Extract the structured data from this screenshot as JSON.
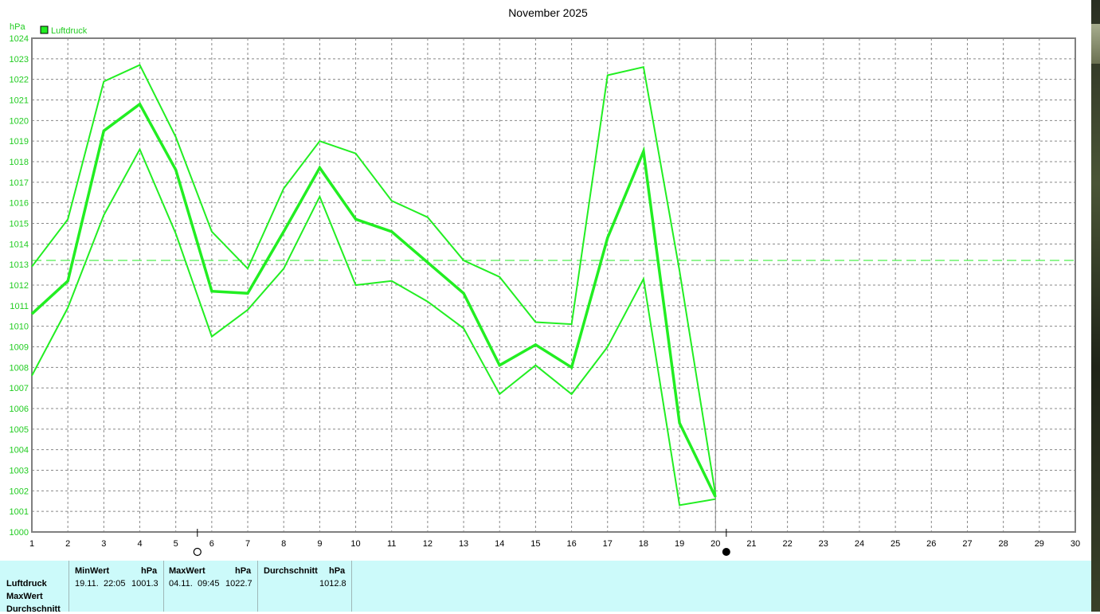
{
  "window": {
    "title": "November 2025"
  },
  "chart_data": {
    "type": "line",
    "title": "November 2025",
    "ylabel": "hPa",
    "xlabel": "",
    "ylim": [
      1000,
      1024
    ],
    "xlim": [
      1,
      30
    ],
    "grid": true,
    "legend": "top-left",
    "legend_entries": [
      "Luftdruck"
    ],
    "x_ticks": [
      1,
      2,
      3,
      4,
      5,
      6,
      7,
      8,
      9,
      10,
      11,
      12,
      13,
      14,
      15,
      16,
      17,
      18,
      19,
      20,
      21,
      22,
      23,
      24,
      25,
      26,
      27,
      28,
      29,
      30
    ],
    "y_ticks": [
      1000,
      1001,
      1002,
      1003,
      1004,
      1005,
      1006,
      1007,
      1008,
      1009,
      1010,
      1011,
      1012,
      1013,
      1014,
      1015,
      1016,
      1017,
      1018,
      1019,
      1020,
      1021,
      1022,
      1023,
      1024
    ],
    "average_line": 1013.2,
    "current_day_marker": 20,
    "moon_markers": [
      {
        "day": 5.6,
        "phase": "full"
      },
      {
        "day": 20.3,
        "phase": "new"
      }
    ],
    "colors": {
      "series": "#22ee22",
      "grid": "#888888",
      "axis": "#808080",
      "axis_label": "#22cc22"
    },
    "series": [
      {
        "name": "Luftdruck",
        "role": "max",
        "x": [
          1,
          2,
          3,
          4,
          5,
          6,
          7,
          8,
          9,
          10,
          11,
          12,
          13,
          14,
          15,
          16,
          17,
          18,
          19,
          20
        ],
        "values": [
          1012.9,
          1015.2,
          1021.9,
          1022.7,
          1019.2,
          1014.6,
          1012.8,
          1016.7,
          1019.0,
          1018.4,
          1016.1,
          1015.3,
          1013.2,
          1012.4,
          1010.2,
          1010.1,
          1022.2,
          1022.6,
          1012.7,
          1001.8
        ]
      },
      {
        "name": "Luftdruck",
        "role": "mean",
        "x": [
          1,
          2,
          3,
          4,
          5,
          6,
          7,
          8,
          9,
          10,
          11,
          12,
          13,
          14,
          15,
          16,
          17,
          18,
          19,
          20
        ],
        "values": [
          1010.6,
          1012.2,
          1019.5,
          1020.8,
          1017.6,
          1011.7,
          1011.6,
          1014.6,
          1017.7,
          1015.2,
          1014.6,
          1013.1,
          1011.6,
          1008.1,
          1009.1,
          1008.0,
          1014.3,
          1018.5,
          1005.3,
          1001.7
        ]
      },
      {
        "name": "Luftdruck",
        "role": "min",
        "x": [
          1,
          2,
          3,
          4,
          5,
          6,
          7,
          8,
          9,
          10,
          11,
          12,
          13,
          14,
          15,
          16,
          17,
          18,
          19,
          20
        ],
        "values": [
          1007.6,
          1010.9,
          1015.4,
          1018.6,
          1014.5,
          1009.5,
          1010.8,
          1012.8,
          1016.3,
          1012.0,
          1012.2,
          1011.2,
          1009.9,
          1006.7,
          1008.1,
          1006.7,
          1009.0,
          1012.3,
          1001.3,
          1001.6
        ]
      }
    ]
  },
  "stats": {
    "row_labels": [
      "Luftdruck",
      "MaxWert",
      "Durchschnitt"
    ],
    "min": {
      "header": "MinWert",
      "unit": "hPa",
      "date": "19.11.",
      "time": "22:05",
      "value": "1001.3"
    },
    "max": {
      "header": "MaxWert",
      "unit": "hPa",
      "date": "04.11.",
      "time": "09:45",
      "value": "1022.7"
    },
    "avg": {
      "header": "Durchschnitt",
      "unit": "hPa",
      "value": "1012.8"
    }
  }
}
